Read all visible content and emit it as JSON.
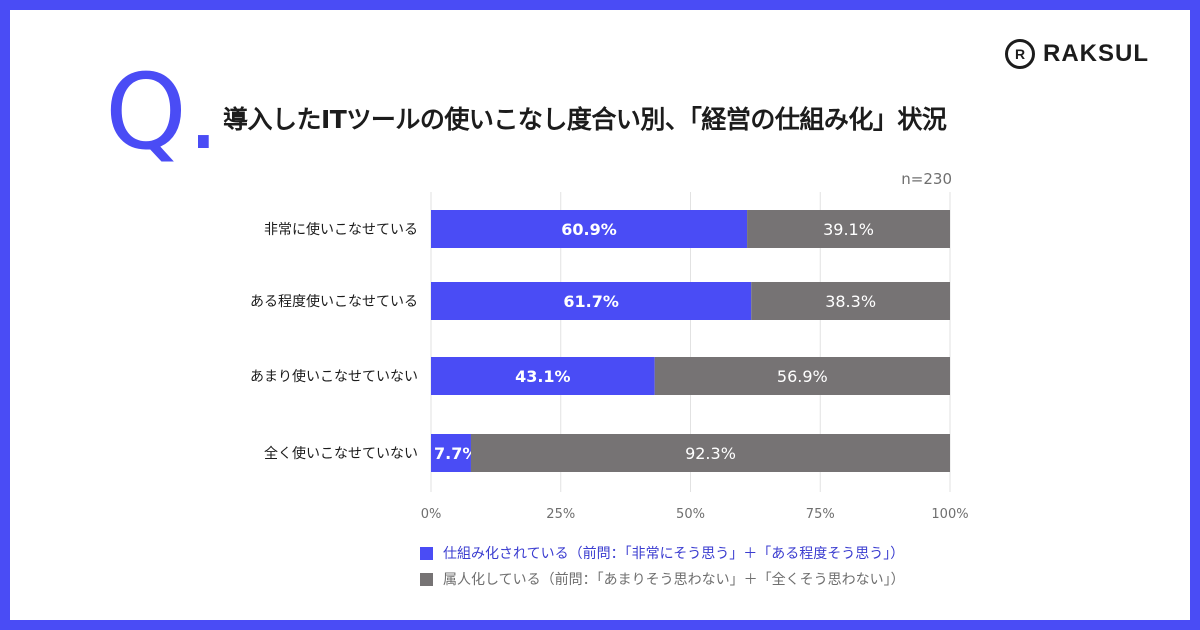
{
  "brand": {
    "name": "RAKSUL"
  },
  "question_mark": "Q.",
  "title": "導入したITツールの使いこなし度合い別、「経営の仕組み化」状況",
  "sample_size": "n=230",
  "colors": {
    "accent": "#4a4cf5",
    "secondary": "#767374",
    "grid": "#e2e2e2",
    "text": "#1c1c1c"
  },
  "chart_data": {
    "type": "bar",
    "orientation": "horizontal",
    "stacked": true,
    "categories": [
      "非常に使いこなせている",
      "ある程度使いこなせている",
      "あまり使いこなせていない",
      "全く使いこなせていない"
    ],
    "series": [
      {
        "name": "仕組み化されている（前問：「非常にそう思う」＋「ある程度そう思う」）",
        "values": [
          60.9,
          61.7,
          43.1,
          7.7
        ],
        "labels": [
          "60.9%",
          "61.7%",
          "43.1%",
          "7.7%"
        ],
        "color": "#4a4cf5"
      },
      {
        "name": "属人化している（前問：「あまりそう思わない」＋「全くそう思わない」）",
        "values": [
          39.1,
          38.3,
          56.9,
          92.3
        ],
        "labels": [
          "39.1%",
          "38.3%",
          "56.9%",
          "92.3%"
        ],
        "color": "#767374"
      }
    ],
    "xlim": [
      0,
      100
    ],
    "xticks": [
      "0%",
      "25%",
      "50%",
      "75%",
      "100%"
    ],
    "grid": true,
    "legend": "bottom"
  }
}
